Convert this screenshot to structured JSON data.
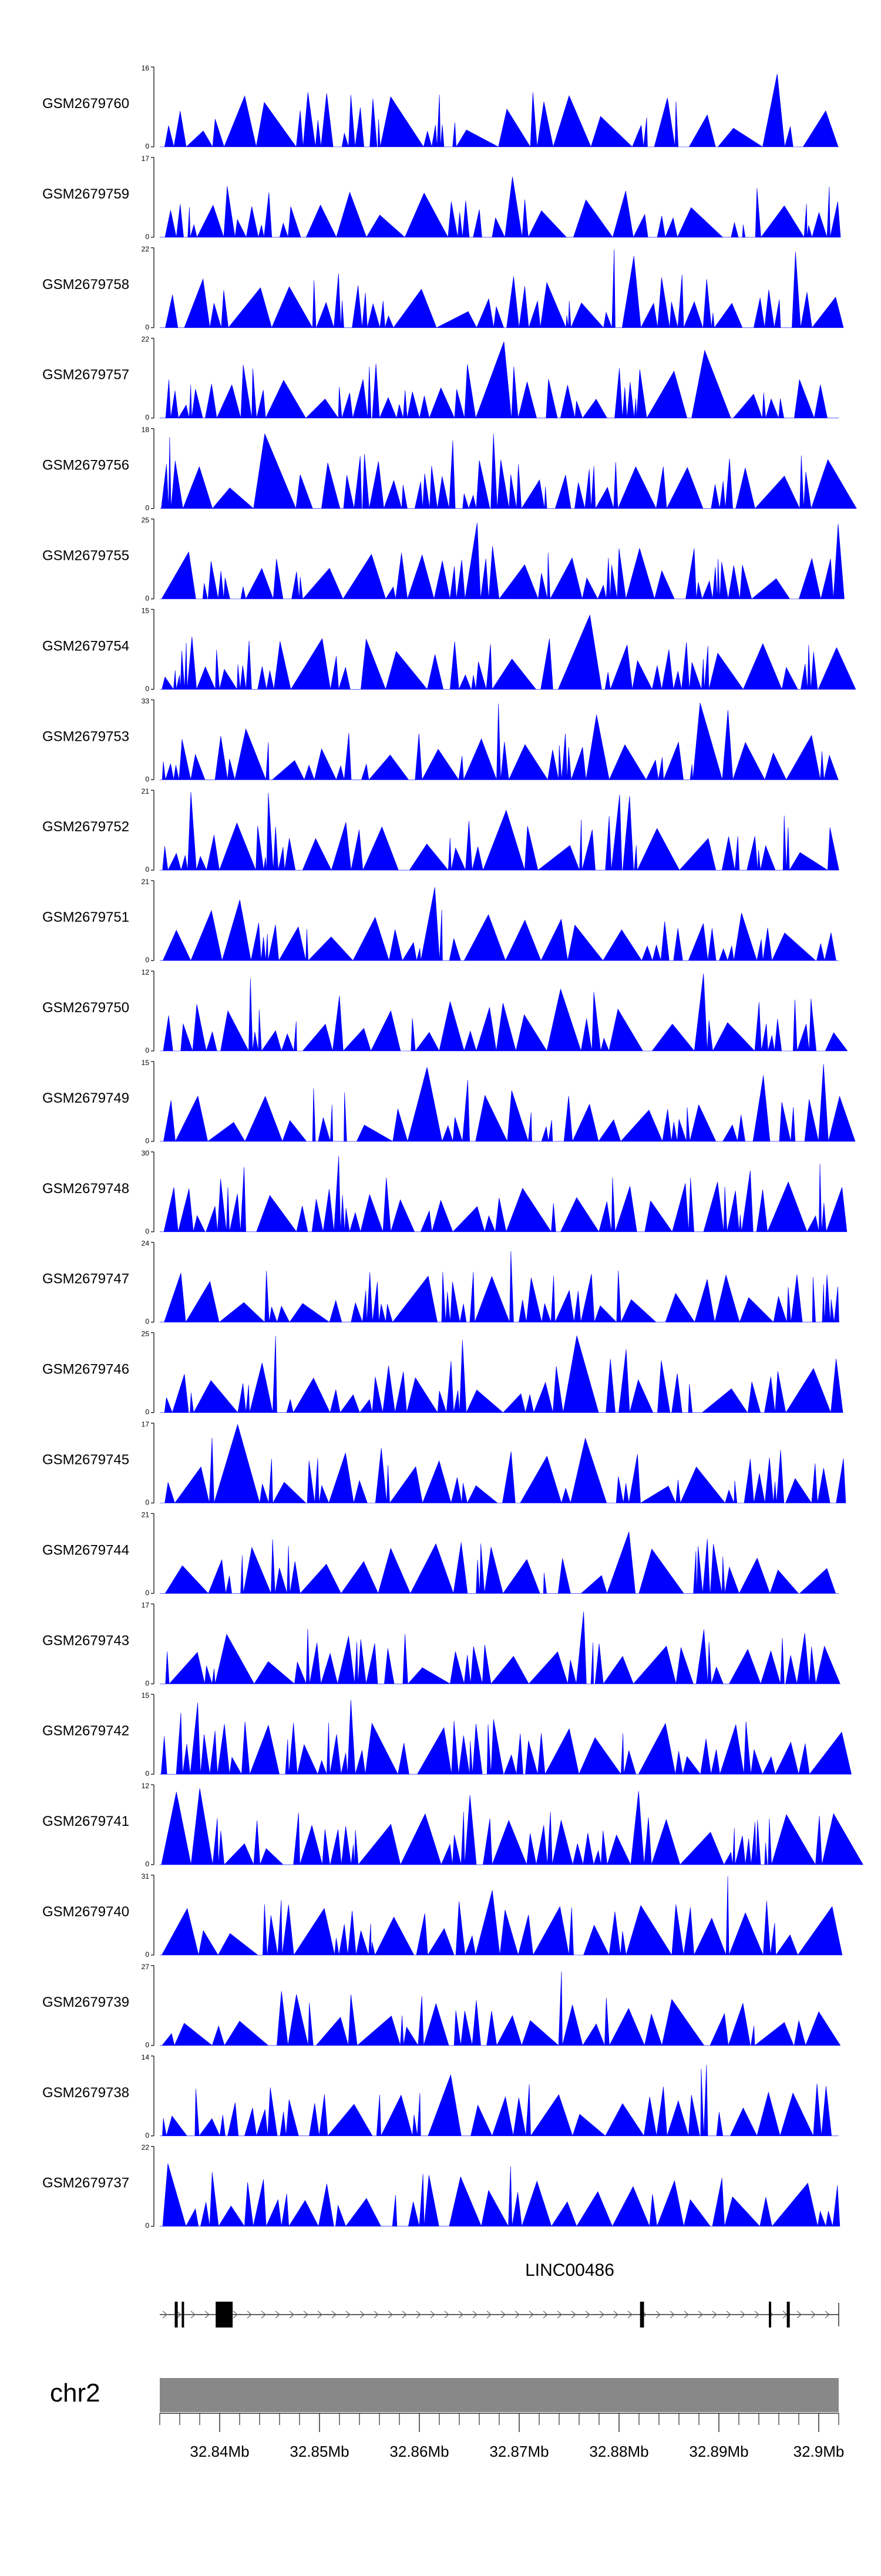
{
  "chart_data": {
    "type": "area",
    "colors": {
      "fill": "#0000ff",
      "axis": "#000000",
      "gene": "#000000",
      "ideogram": "#888888"
    },
    "tracks": [
      {
        "name": "GSM2679760",
        "ymax": "16"
      },
      {
        "name": "GSM2679759",
        "ymax": "17"
      },
      {
        "name": "GSM2679758",
        "ymax": "22"
      },
      {
        "name": "GSM2679757",
        "ymax": "22"
      },
      {
        "name": "GSM2679756",
        "ymax": "18"
      },
      {
        "name": "GSM2679755",
        "ymax": "25"
      },
      {
        "name": "GSM2679754",
        "ymax": "15"
      },
      {
        "name": "GSM2679753",
        "ymax": "33"
      },
      {
        "name": "GSM2679752",
        "ymax": "21"
      },
      {
        "name": "GSM2679751",
        "ymax": "21"
      },
      {
        "name": "GSM2679750",
        "ymax": "12"
      },
      {
        "name": "GSM2679749",
        "ymax": "15"
      },
      {
        "name": "GSM2679748",
        "ymax": "30"
      },
      {
        "name": "GSM2679747",
        "ymax": "24"
      },
      {
        "name": "GSM2679746",
        "ymax": "25"
      },
      {
        "name": "GSM2679745",
        "ymax": "17"
      },
      {
        "name": "GSM2679744",
        "ymax": "21"
      },
      {
        "name": "GSM2679743",
        "ymax": "17"
      },
      {
        "name": "GSM2679742",
        "ymax": "15"
      },
      {
        "name": "GSM2679741",
        "ymax": "12"
      },
      {
        "name": "GSM2679740",
        "ymax": "31"
      },
      {
        "name": "GSM2679739",
        "ymax": "27"
      },
      {
        "name": "GSM2679738",
        "ymax": "14"
      },
      {
        "name": "GSM2679737",
        "ymax": "22"
      }
    ],
    "ymin_label": "0",
    "gene": {
      "name": "LINC00486",
      "strand": "+",
      "xrange": [
        32.834,
        32.902
      ],
      "exons": [
        {
          "start": 32.8355,
          "end": 32.8358
        },
        {
          "start": 32.8362,
          "end": 32.8364
        },
        {
          "start": 32.8396,
          "end": 32.8413
        },
        {
          "start": 32.8821,
          "end": 32.8825
        },
        {
          "start": 32.895,
          "end": 32.8952
        },
        {
          "start": 32.8968,
          "end": 32.8971
        }
      ]
    },
    "chromosome": "chr2",
    "axis": {
      "xlim": [
        32.834,
        32.902
      ],
      "ticks": [
        32.84,
        32.85,
        32.86,
        32.87,
        32.88,
        32.89,
        32.9
      ],
      "tick_labels": [
        "32.84Mb",
        "32.85Mb",
        "32.86Mb",
        "32.87Mb",
        "32.88Mb",
        "32.89Mb",
        "32.9Mb"
      ],
      "minor_step": 0.002
    }
  }
}
